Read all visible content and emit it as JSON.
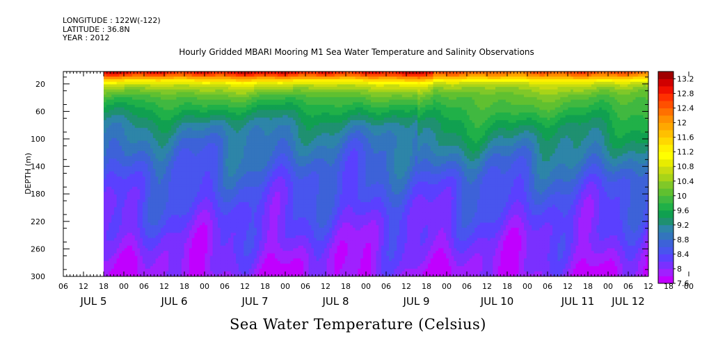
{
  "header": {
    "longitude": "LONGITUDE : 122W(-122)",
    "latitude": "LATITUDE : 36.8N",
    "year": "YEAR : 2012"
  },
  "chart_data": {
    "type": "heatmap",
    "title": "Hourly Gridded MBARI Mooring M1 Sea Water Temperature and Salinity Observations",
    "xlabel": "Sea Water Temperature (Celsius)",
    "ylabel": "DEPTH (m)",
    "ylim": [
      300,
      2
    ],
    "y_ticks": [
      20,
      60,
      100,
      140,
      180,
      220,
      260,
      300
    ],
    "x_range_hours": [
      0,
      174
    ],
    "x_hour_labels": [
      "06",
      "12",
      "18",
      "00",
      "06",
      "12",
      "18",
      "00",
      "06",
      "12",
      "18",
      "00",
      "06",
      "12",
      "18",
      "00",
      "06",
      "12",
      "18",
      "00",
      "06",
      "12",
      "18",
      "00",
      "06",
      "12",
      "18",
      "00",
      "06",
      "12",
      "18",
      "00"
    ],
    "x_day_labels": [
      "JUL  5",
      "JUL  6",
      "JUL  7",
      "JUL  8",
      "JUL  9",
      "JUL 10",
      "JUL 11",
      "JUL 12"
    ],
    "data_start_hour": 12,
    "colorbar": {
      "labels": [
        "13.2",
        "12.8",
        "12.4",
        "12",
        "11.6",
        "11.2",
        "10.8",
        "10.4",
        "10",
        "9.6",
        "9.2",
        "8.8",
        "8.4",
        "8",
        "7.6"
      ],
      "levels": [
        7.6,
        7.8,
        8.0,
        8.2,
        8.4,
        8.6,
        8.8,
        9.0,
        9.2,
        9.4,
        9.6,
        9.8,
        10.0,
        10.2,
        10.4,
        10.6,
        10.8,
        11.0,
        11.2,
        11.4,
        11.6,
        11.8,
        12.0,
        12.2,
        12.4,
        12.6,
        12.8,
        13.0,
        13.2,
        13.4
      ],
      "colors": [
        "#c000ff",
        "#a020ff",
        "#7a30ff",
        "#5a40ff",
        "#4855ee",
        "#3d62d8",
        "#3375bd",
        "#2d85a8",
        "#1f9070",
        "#10a050",
        "#20b048",
        "#40b840",
        "#60c030",
        "#80c828",
        "#a8d418",
        "#c8dc10",
        "#e8ec00",
        "#ffff00",
        "#fff000",
        "#ffd800",
        "#ffc000",
        "#ffa800",
        "#ff9000",
        "#ff7000",
        "#ff5000",
        "#ff3000",
        "#f01000",
        "#d00000",
        "#a00000"
      ]
    },
    "profile": {
      "depths_m": [
        2,
        8,
        14,
        20,
        30,
        40,
        60,
        80,
        100,
        130,
        160,
        190,
        220,
        260,
        300
      ],
      "mean_temperature_c": [
        12.6,
        12.1,
        11.3,
        10.6,
        10.2,
        9.9,
        9.5,
        9.15,
        8.95,
        8.75,
        8.55,
        8.4,
        8.25,
        8.05,
        7.85
      ]
    }
  }
}
